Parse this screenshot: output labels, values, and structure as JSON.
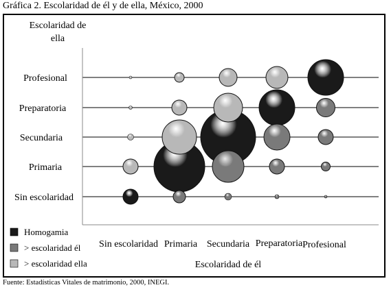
{
  "title": "Gráfica 2. Escolaridad de él y de ella, México, 2000",
  "source": "Fuente: Estadísticas Vitales de matrimonio, 2000, INEGI.",
  "chart_data": {
    "type": "scatter",
    "subtype": "bubble",
    "xlabel": "Escolaridad de él",
    "ylabel": "Escolaridad de ella",
    "x_categories": [
      "Sin escolaridad",
      "Primaria",
      "Secundaria",
      "Preparatoria",
      "Profesional"
    ],
    "y_categories": [
      "Sin escolaridad",
      "Primaria",
      "Secundaria",
      "Preparatoria",
      "Profesional"
    ],
    "grid": true,
    "legend_position": "bottom-left",
    "series": [
      {
        "name": "Homogamia",
        "color": "#1a1a1a"
      },
      {
        "name": "> escolaridad él",
        "color": "#7a7a7a"
      },
      {
        "name": "> escolaridad ella",
        "color": "#b8b8b8"
      }
    ],
    "bubbles": [
      {
        "x": "Sin escolaridad",
        "y": "Sin escolaridad",
        "series": "Homogamia",
        "size": 11
      },
      {
        "x": "Sin escolaridad",
        "y": "Primaria",
        "series": "> escolaridad ella",
        "size": 11
      },
      {
        "x": "Sin escolaridad",
        "y": "Secundaria",
        "series": "> escolaridad ella",
        "size": 4.5
      },
      {
        "x": "Sin escolaridad",
        "y": "Preparatoria",
        "series": "> escolaridad ella",
        "size": 2.5
      },
      {
        "x": "Sin escolaridad",
        "y": "Profesional",
        "series": "> escolaridad ella",
        "size": 2
      },
      {
        "x": "Primaria",
        "y": "Sin escolaridad",
        "series": "> escolaridad él",
        "size": 9
      },
      {
        "x": "Primaria",
        "y": "Primaria",
        "series": "Homogamia",
        "size": 37
      },
      {
        "x": "Primaria",
        "y": "Secundaria",
        "series": "> escolaridad ella",
        "size": 25
      },
      {
        "x": "Primaria",
        "y": "Preparatoria",
        "series": "> escolaridad ella",
        "size": 11
      },
      {
        "x": "Primaria",
        "y": "Profesional",
        "series": "> escolaridad ella",
        "size": 7
      },
      {
        "x": "Secundaria",
        "y": "Sin escolaridad",
        "series": "> escolaridad él",
        "size": 5
      },
      {
        "x": "Secundaria",
        "y": "Primaria",
        "series": "> escolaridad él",
        "size": 23
      },
      {
        "x": "Secundaria",
        "y": "Secundaria",
        "series": "Homogamia",
        "size": 40
      },
      {
        "x": "Secundaria",
        "y": "Preparatoria",
        "series": "> escolaridad ella",
        "size": 21
      },
      {
        "x": "Secundaria",
        "y": "Profesional",
        "series": "> escolaridad ella",
        "size": 13
      },
      {
        "x": "Preparatoria",
        "y": "Sin escolaridad",
        "series": "> escolaridad él",
        "size": 3
      },
      {
        "x": "Preparatoria",
        "y": "Primaria",
        "series": "> escolaridad él",
        "size": 11
      },
      {
        "x": "Preparatoria",
        "y": "Secundaria",
        "series": "> escolaridad él",
        "size": 19
      },
      {
        "x": "Preparatoria",
        "y": "Preparatoria",
        "series": "Homogamia",
        "size": 26
      },
      {
        "x": "Preparatoria",
        "y": "Profesional",
        "series": "> escolaridad ella",
        "size": 16
      },
      {
        "x": "Profesional",
        "y": "Sin escolaridad",
        "series": "> escolaridad él",
        "size": 2
      },
      {
        "x": "Profesional",
        "y": "Primaria",
        "series": "> escolaridad él",
        "size": 6.5
      },
      {
        "x": "Profesional",
        "y": "Secundaria",
        "series": "> escolaridad él",
        "size": 11
      },
      {
        "x": "Profesional",
        "y": "Preparatoria",
        "series": "> escolaridad él",
        "size": 13.5
      },
      {
        "x": "Profesional",
        "y": "Profesional",
        "series": "Homogamia",
        "size": 26
      }
    ]
  }
}
